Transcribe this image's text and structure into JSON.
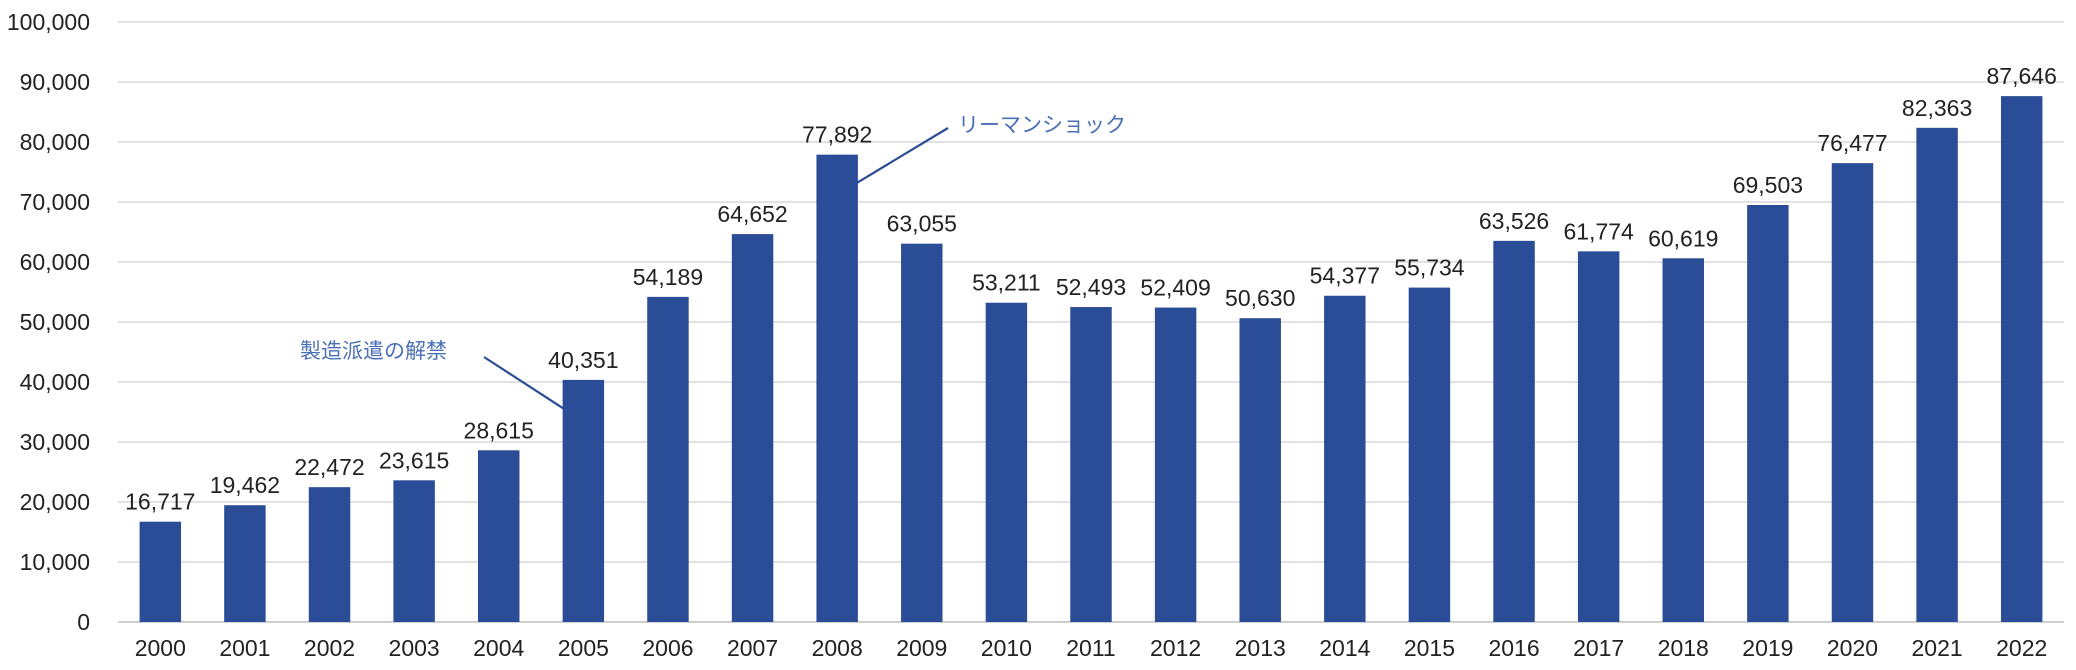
{
  "chart_data": {
    "type": "bar",
    "categories": [
      "2000",
      "2001",
      "2002",
      "2003",
      "2004",
      "2005",
      "2006",
      "2007",
      "2008",
      "2009",
      "2010",
      "2011",
      "2012",
      "2013",
      "2014",
      "2015",
      "2016",
      "2017",
      "2018",
      "2019",
      "2020",
      "2021",
      "2022"
    ],
    "values": [
      16717,
      19462,
      22472,
      23615,
      28615,
      40351,
      54189,
      64652,
      77892,
      63055,
      53211,
      52493,
      52409,
      50630,
      54377,
      55734,
      63526,
      61774,
      60619,
      69503,
      76477,
      82363,
      87646
    ],
    "data_labels": [
      "16,717",
      "19,462",
      "22,472",
      "23,615",
      "28,615",
      "40,351",
      "54,189",
      "64,652",
      "77,892",
      "63,055",
      "53,211",
      "52,493",
      "52,409",
      "50,630",
      "54,377",
      "55,734",
      "63,526",
      "61,774",
      "60,619",
      "69,503",
      "76,477",
      "82,363",
      "87,646"
    ],
    "title": "",
    "xlabel": "",
    "ylabel": "",
    "ylim": [
      0,
      100000
    ],
    "yticks": [
      0,
      10000,
      20000,
      30000,
      40000,
      50000,
      60000,
      70000,
      80000,
      90000,
      100000
    ],
    "ytick_labels": [
      "0",
      "10,000",
      "20,000",
      "30,000",
      "40,000",
      "50,000",
      "60,000",
      "70,000",
      "80,000",
      "90,000",
      "100,000"
    ],
    "grid": true,
    "legend": "none",
    "colors": {
      "bar": "#2b4c96",
      "grid": "#d9d9d9",
      "annotation": "#4a6fb5",
      "annotation_line": "#2b4c96"
    },
    "annotations": [
      {
        "text": "製造派遣の解禁",
        "category": "2005"
      },
      {
        "text": "リーマンショック",
        "category": "2008"
      }
    ]
  }
}
